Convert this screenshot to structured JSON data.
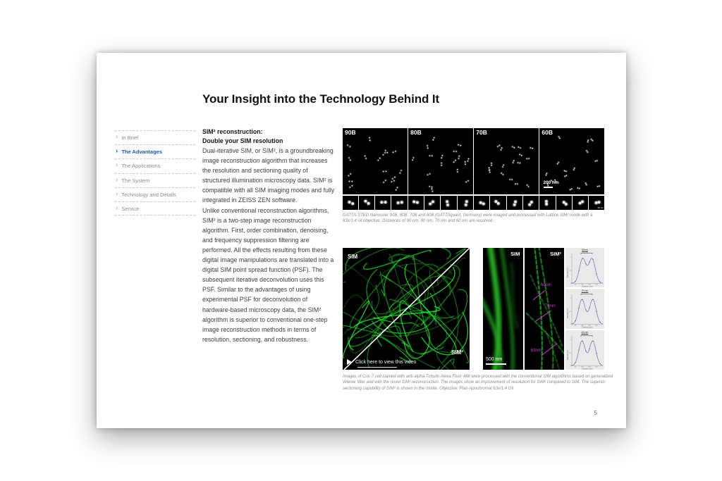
{
  "page": {
    "title": "Your Insight into the Technology Behind It",
    "page_number": "5"
  },
  "sidebar": {
    "items": [
      {
        "label": "In Brief"
      },
      {
        "label": "The Advantages"
      },
      {
        "label": "The Applications"
      },
      {
        "label": "The System"
      },
      {
        "label": "Technology and Details"
      },
      {
        "label": "Service"
      }
    ]
  },
  "article": {
    "heading_line1": "SIM² reconstruction:",
    "heading_line2": "Double your SIM resolution",
    "para1": "Dual-iterative SIM, or SIM², is a groundbreaking image reconstruction algorithm that increases the resolution and sectioning quality of structured illumination microscopy data. SIM² is compatible with all SIM imaging modes and fully integrated in ZEISS ZEN software.",
    "para2": "Unlike conventional reconstruction algorithms, SIM² is a two-step image reconstruction algorithm. First, order combination, denoising, and frequency suppression filtering are performed. All the effects resulting from these digital image manipulations are translated into a digital SIM point spread function (PSF). The subsequent iterative deconvolution uses this PSF. Similar to the advantages of using experimental PSF for deconvolution of hardware-based microscopy data, the SIM² algorithm is superior to conventional one-step image reconstruction methods in terms of resolution, sectioning, and robustness."
  },
  "figure1": {
    "panels": [
      "90B",
      "80B",
      "70B",
      "60B"
    ],
    "scale_bar": "200 nm",
    "inset_scale": "50 nm",
    "caption": "GATTA-STED Nanoruler 90B, 80B, 70B and 60B (GATTAquant, Germany) were imaged and processed with Lattice SIM² mode with a 63x/1.4 oil objective. Distances of 90 nm, 80 nm, 70 nm and 60 nm are resolved."
  },
  "figure2": {
    "video_label_sim": "SIM",
    "video_label_sim2": "SIM²",
    "video_cta": "Click here to view this video",
    "compare_label_sim": "SIM",
    "compare_label_sim2": "SIM²",
    "scale_bar": "500 nm",
    "annotations": [
      "60nm",
      "70nm",
      "69nm"
    ],
    "caption": "Images of Cos-7 cell stained with anti-alpha-Tubulin Alexa Fluor 488 were processed with the conventional SIM algorithms based on generalized Wiener filter and with the novel SIM² reconstruction. The images show an improvement of resolution for SIM² compared to SIM. The superior sectioning capability of SIM² is shown in the movie. Objective: Plan-Apochromat 63x/1.4 Oil",
    "profile_plots": [
      {
        "title": "60nm",
        "peak_separation_nm": 60,
        "ylabel": "Intensity (AU)",
        "xlabel": "Distance (nm)",
        "xticks": [
          "50",
          "100",
          "150",
          "200"
        ],
        "yticks": [
          "0",
          "0.5",
          "1"
        ]
      },
      {
        "title": "70 nm",
        "peak_separation_nm": 70,
        "ylabel": "Intensity (AU)",
        "xlabel": "Distance (nm)",
        "xticks": [
          "50",
          "100",
          "150",
          "200"
        ],
        "yticks": [
          "0",
          "0.5",
          "1"
        ]
      },
      {
        "title": "69 nm",
        "peak_separation_nm": 69,
        "ylabel": "Intensity (AU)",
        "xlabel": "Distance (nm)",
        "xticks": [
          "50",
          "100",
          "150",
          "200"
        ],
        "yticks": [
          "0",
          "0.5",
          "1"
        ]
      }
    ]
  },
  "colors": {
    "accent_blue": "#1a5dab",
    "magenta": "#d53ad5",
    "filament_green": "#2ecc2e"
  }
}
